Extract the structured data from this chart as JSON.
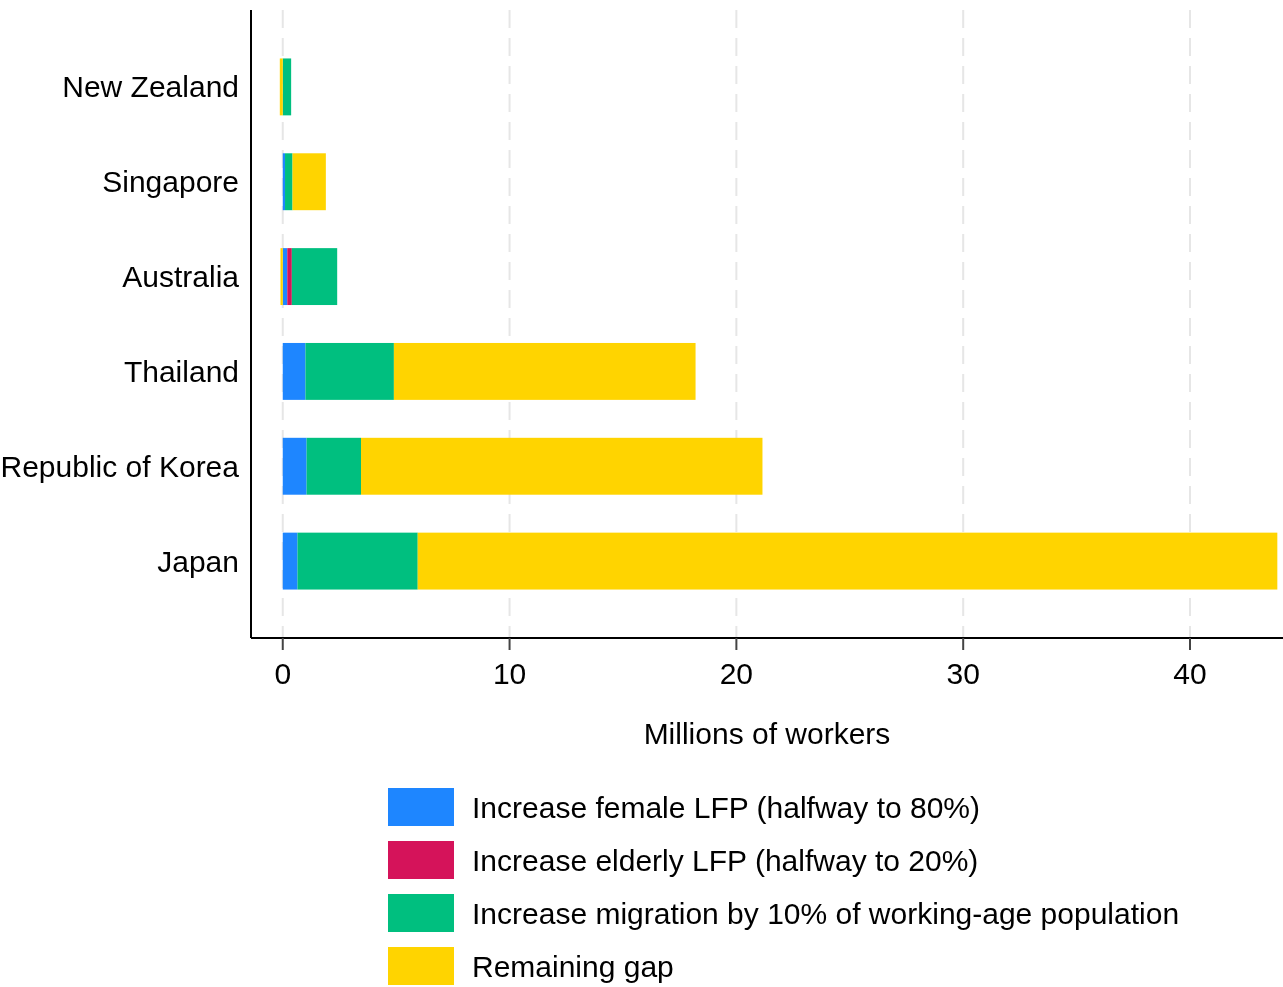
{
  "chart_data": {
    "type": "bar",
    "orientation": "horizontal",
    "stacked": true,
    "xlabel": "Millions of workers",
    "categories": [
      "New Zealand",
      "Singapore",
      "Australia",
      "Thailand",
      "Republic of Korea",
      "Japan"
    ],
    "series": [
      {
        "name": "Increase female LFP (halfway to 80%)",
        "color": "#1e86ff",
        "values": [
          0,
          0.1,
          0.2,
          1.0,
          1.05,
          0.65
        ]
      },
      {
        "name": "Increase elderly LFP (halfway to 20%)",
        "color": "#d5135a",
        "values": [
          0,
          0,
          0.2,
          0,
          0,
          0
        ]
      },
      {
        "name": "Increase migration by 10% of working-age population",
        "color": "#00bf7f",
        "values": [
          0.37,
          0.33,
          2.0,
          3.9,
          2.4,
          5.3
        ]
      },
      {
        "name": "Remaining gap",
        "color": "#ffd400",
        "values": [
          -0.13,
          1.47,
          -0.1,
          13.3,
          17.7,
          37.9
        ]
      }
    ],
    "xlim": [
      -1.4,
      44.1
    ],
    "xticks": [
      0,
      10,
      20,
      30,
      40
    ],
    "grid": "x",
    "legend": "bottom"
  }
}
